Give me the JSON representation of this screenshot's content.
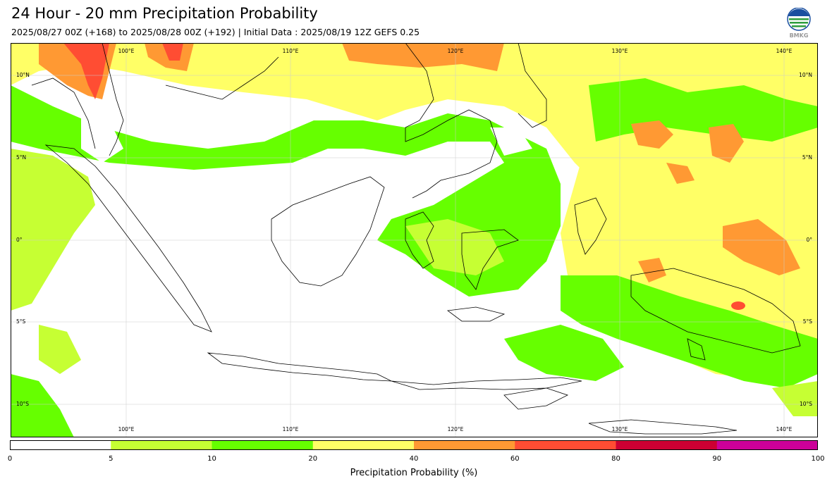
{
  "header": {
    "title": "24 Hour - 20 mm Precipitation Probability",
    "subtitle": "2025/08/27 00Z (+168) to 2025/08/28 00Z (+192) | Initial Data : 2025/08/19 12Z GEFS 0.25",
    "logo_text": "BMKG"
  },
  "map": {
    "lon_labels_top": [
      "100°E",
      "110°E",
      "120°E",
      "130°E",
      "140°E"
    ],
    "lon_labels_bottom": [
      "100°E",
      "110°E",
      "120°E",
      "130°E",
      "140°E"
    ],
    "lat_labels_left": [
      "10°N",
      "5°N",
      "0°",
      "5°S",
      "10°S"
    ],
    "lat_labels_right": [
      "10°N",
      "5°N",
      "0°",
      "5°S",
      "10°S"
    ]
  },
  "legend": {
    "title": "Precipitation Probability (%)",
    "ticks": [
      "0",
      "5",
      "10",
      "20",
      "40",
      "60",
      "80",
      "90",
      "100"
    ],
    "colors": [
      "#ffffff",
      "#c6ff33",
      "#66ff00",
      "#ffff66",
      "#ff9933",
      "#ff4d33",
      "#cc0033",
      "#cc0099"
    ]
  }
}
